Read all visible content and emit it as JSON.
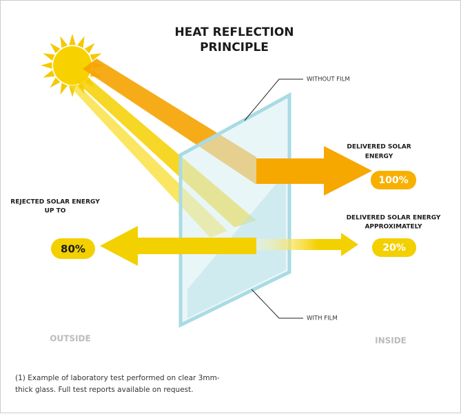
{
  "title": [
    "HEAT REFLECTION",
    "PRINCIPLE"
  ],
  "glass_labels": {
    "top": "WITHOUT FILM",
    "bottom": "WITH FILM"
  },
  "delivered": {
    "label": [
      "DELIVERED SOLAR",
      "ENERGY"
    ],
    "value": "100%"
  },
  "rejected": {
    "label": [
      "REJECTED SOLAR ENERGY",
      "UP TO"
    ],
    "value": "80%"
  },
  "delivered_film": {
    "label": [
      "DELIVERED SOLAR ENERGY",
      "APPROXIMATELY"
    ],
    "value": "20%"
  },
  "sides": {
    "left": "OUTSIDE",
    "right": "INSIDE"
  },
  "footnote": [
    "(1) Example of laboratory test performed on clear 3mm-",
    "thick glass. Full test reports available on request."
  ]
}
